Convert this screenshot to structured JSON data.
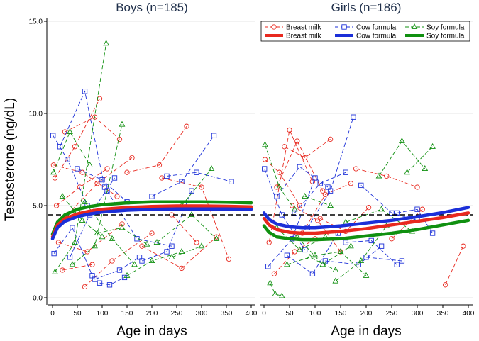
{
  "chart_data": {
    "type": "line",
    "ylabel": "Testosterone (ng/dL)",
    "xlabel": "Age in days",
    "ylim": [
      0,
      15
    ],
    "xlim": [
      0,
      400
    ],
    "yticks": [
      0,
      5,
      10,
      15
    ],
    "ytick_labels": [
      "0.0",
      "5.0",
      "10.0",
      "15.0"
    ],
    "xticks": [
      0,
      50,
      100,
      150,
      200,
      250,
      300,
      350,
      400
    ],
    "reference_line": 4.5,
    "colors": {
      "breast": "#e8291f",
      "cow": "#1b2fd8",
      "soy": "#109010",
      "grid": "#e6e6e6",
      "title": "#1f2f4a"
    },
    "legend": [
      {
        "label": "Breast milk",
        "group": "breast",
        "kind": "obs"
      },
      {
        "label": "Cow formula",
        "group": "cow",
        "kind": "obs"
      },
      {
        "label": "Soy formula",
        "group": "soy",
        "kind": "obs"
      },
      {
        "label": "Breast milk",
        "group": "breast",
        "kind": "fit"
      },
      {
        "label": "Cow formula",
        "group": "cow",
        "kind": "fit"
      },
      {
        "label": "Soy formula",
        "group": "soy",
        "kind": "fit"
      }
    ],
    "panels": [
      {
        "title": "Boys (n=185)",
        "fits": [
          {
            "group": "soy",
            "x": [
              0,
              10,
              25,
              50,
              75,
              100,
              150,
              200,
              250,
              300,
              350,
              400
            ],
            "y": [
              3.45,
              4.1,
              4.5,
              4.8,
              4.95,
              5.05,
              5.15,
              5.2,
              5.2,
              5.2,
              5.18,
              5.15
            ]
          },
          {
            "group": "breast",
            "x": [
              0,
              10,
              25,
              50,
              75,
              100,
              150,
              200,
              250,
              300,
              350,
              400
            ],
            "y": [
              3.3,
              3.95,
              4.3,
              4.55,
              4.7,
              4.8,
              4.9,
              4.95,
              4.98,
              4.98,
              4.96,
              4.93
            ]
          },
          {
            "group": "cow",
            "x": [
              0,
              10,
              25,
              50,
              75,
              100,
              150,
              200,
              250,
              300,
              350,
              400
            ],
            "y": [
              3.2,
              3.8,
              4.15,
              4.4,
              4.55,
              4.65,
              4.75,
              4.8,
              4.82,
              4.82,
              4.82,
              4.8
            ]
          }
        ],
        "subjects": [
          {
            "group": "breast",
            "x": [
              2,
              60,
              130
            ],
            "y": [
              7.2,
              6.8,
              5.5
            ]
          },
          {
            "group": "breast",
            "x": [
              5,
              45,
              95
            ],
            "y": [
              6.5,
              8.2,
              10.8
            ]
          },
          {
            "group": "breast",
            "x": [
              8,
              55,
              110
            ],
            "y": [
              5.0,
              6.0,
              7.0
            ]
          },
          {
            "group": "breast",
            "x": [
              12,
              70,
              140
            ],
            "y": [
              3.0,
              2.5,
              4.0
            ]
          },
          {
            "group": "breast",
            "x": [
              20,
              80
            ],
            "y": [
              1.5,
              1.8
            ]
          },
          {
            "group": "breast",
            "x": [
              30,
              90,
              160
            ],
            "y": [
              4.5,
              6.2,
              7.6
            ]
          },
          {
            "group": "breast",
            "x": [
              65,
              120,
              200
            ],
            "y": [
              0.6,
              2.0,
              3.5
            ]
          },
          {
            "group": "breast",
            "x": [
              150,
              215,
              270
            ],
            "y": [
              6.8,
              7.2,
              9.3
            ]
          },
          {
            "group": "breast",
            "x": [
              180,
              260,
              330
            ],
            "y": [
              2.8,
              1.6,
              3.3
            ]
          },
          {
            "group": "breast",
            "x": [
              220,
              300,
              355
            ],
            "y": [
              6.5,
              6.0,
              2.1
            ]
          },
          {
            "group": "breast",
            "x": [
              240,
              290
            ],
            "y": [
              4.5,
              3.0
            ]
          },
          {
            "group": "breast",
            "x": [
              25,
              85,
              135
            ],
            "y": [
              9.0,
              9.8,
              8.6
            ]
          },
          {
            "group": "cow",
            "x": [
              1,
              30,
              70
            ],
            "y": [
              8.8,
              7.5,
              5.0
            ]
          },
          {
            "group": "cow",
            "x": [
              3,
              40,
              80
            ],
            "y": [
              2.4,
              3.8,
              1.2
            ]
          },
          {
            "group": "cow",
            "x": [
              15,
              65,
              105
            ],
            "y": [
              8.2,
              11.2,
              6.0
            ]
          },
          {
            "group": "cow",
            "x": [
              35,
              75,
              125
            ],
            "y": [
              2.2,
              4.5,
              6.5
            ]
          },
          {
            "group": "cow",
            "x": [
              50,
              100,
              150
            ],
            "y": [
              7.0,
              6.4,
              5.2
            ]
          },
          {
            "group": "cow",
            "x": [
              85,
              135,
              175
            ],
            "y": [
              1.0,
              1.5,
              2.2
            ]
          },
          {
            "group": "cow",
            "x": [
              110,
              170,
              240
            ],
            "y": [
              5.8,
              3.2,
              2.8
            ]
          },
          {
            "group": "cow",
            "x": [
              180,
              230,
              280
            ],
            "y": [
              2.0,
              2.5,
              5.8
            ]
          },
          {
            "group": "cow",
            "x": [
              200,
              260,
              325
            ],
            "y": [
              5.5,
              6.3,
              8.8
            ]
          },
          {
            "group": "cow",
            "x": [
              230,
              290,
              360
            ],
            "y": [
              6.6,
              6.8,
              6.3
            ]
          },
          {
            "group": "cow",
            "x": [
              95,
              115,
              145
            ],
            "y": [
              0.8,
              0.7,
              1.1
            ]
          },
          {
            "group": "soy",
            "x": [
              2,
              35,
              75
            ],
            "y": [
              6.8,
              9.0,
              7.2
            ]
          },
          {
            "group": "soy",
            "x": [
              5,
              45,
              108
            ],
            "y": [
              1.4,
              3.0,
              13.8
            ]
          },
          {
            "group": "soy",
            "x": [
              20,
              60,
              100
            ],
            "y": [
              5.5,
              4.2,
              3.3
            ]
          },
          {
            "group": "soy",
            "x": [
              40,
              85,
              140
            ],
            "y": [
              1.8,
              2.8,
              9.4
            ]
          },
          {
            "group": "soy",
            "x": [
              65,
              120,
              165
            ],
            "y": [
              5.2,
              3.2,
              1.8
            ]
          },
          {
            "group": "soy",
            "x": [
              90,
              140,
              190
            ],
            "y": [
              3.5,
              3.8,
              2.9
            ]
          },
          {
            "group": "soy",
            "x": [
              150,
              200,
              260
            ],
            "y": [
              1.2,
              2.0,
              2.5
            ]
          },
          {
            "group": "soy",
            "x": [
              210,
              280,
              330
            ],
            "y": [
              3.0,
              4.5,
              3.2
            ]
          },
          {
            "group": "soy",
            "x": [
              240,
              300
            ],
            "y": [
              2.2,
              2.8
            ]
          },
          {
            "group": "soy",
            "x": [
              260,
              320
            ],
            "y": [
              5.0,
              7.0
            ]
          }
        ]
      },
      {
        "title": "Girls (n=186)",
        "fits": [
          {
            "group": "cow",
            "x": [
              0,
              10,
              25,
              50,
              75,
              100,
              150,
              200,
              250,
              300,
              350,
              400
            ],
            "y": [
              4.6,
              4.25,
              4.0,
              3.85,
              3.8,
              3.8,
              3.9,
              4.05,
              4.2,
              4.4,
              4.62,
              4.9
            ]
          },
          {
            "group": "breast",
            "x": [
              0,
              10,
              25,
              50,
              75,
              100,
              150,
              200,
              250,
              300,
              350,
              400
            ],
            "y": [
              4.3,
              3.95,
              3.7,
              3.55,
              3.5,
              3.5,
              3.6,
              3.75,
              3.95,
              4.15,
              4.35,
              4.6
            ]
          },
          {
            "group": "soy",
            "x": [
              0,
              10,
              25,
              50,
              75,
              100,
              150,
              200,
              250,
              300,
              350,
              400
            ],
            "y": [
              3.9,
              3.55,
              3.3,
              3.2,
              3.15,
              3.15,
              3.2,
              3.35,
              3.5,
              3.7,
              3.95,
              4.2
            ]
          }
        ],
        "subjects": [
          {
            "group": "breast",
            "x": [
              2,
              30,
              70
            ],
            "y": [
              7.5,
              6.8,
              5.0
            ]
          },
          {
            "group": "breast",
            "x": [
              10,
              50,
              95
            ],
            "y": [
              3.0,
              9.1,
              6.3
            ]
          },
          {
            "group": "breast",
            "x": [
              20,
              60,
              100
            ],
            "y": [
              1.3,
              2.5,
              3.2
            ]
          },
          {
            "group": "breast",
            "x": [
              40,
              80,
              130
            ],
            "y": [
              8.2,
              7.6,
              8.6
            ]
          },
          {
            "group": "breast",
            "x": [
              55,
              105,
              150
            ],
            "y": [
              5.0,
              4.2,
              2.5
            ]
          },
          {
            "group": "breast",
            "x": [
              75,
              120,
              170
            ],
            "y": [
              3.5,
              5.6,
              6.2
            ]
          },
          {
            "group": "breast",
            "x": [
              110,
              160,
              205
            ],
            "y": [
              4.3,
              3.6,
              4.9
            ]
          },
          {
            "group": "breast",
            "x": [
              180,
              240,
              300
            ],
            "y": [
              7.0,
              6.6,
              6.0
            ]
          },
          {
            "group": "breast",
            "x": [
              250,
              310
            ],
            "y": [
              3.2,
              4.8
            ]
          },
          {
            "group": "breast",
            "x": [
              355,
              390
            ],
            "y": [
              0.7,
              2.8
            ]
          },
          {
            "group": "breast",
            "x": [
              25,
              65,
              115
            ],
            "y": [
              6.0,
              8.5,
              5.8
            ]
          },
          {
            "group": "cow",
            "x": [
              1,
              35,
              80
            ],
            "y": [
              7.0,
              4.5,
              2.6
            ]
          },
          {
            "group": "cow",
            "x": [
              8,
              55,
              100
            ],
            "y": [
              1.7,
              3.2,
              6.5
            ]
          },
          {
            "group": "cow",
            "x": [
              25,
              70,
              125
            ],
            "y": [
              5.5,
              7.1,
              6.0
            ]
          },
          {
            "group": "cow",
            "x": [
              45,
              95,
              145
            ],
            "y": [
              2.3,
              1.3,
              3.5
            ]
          },
          {
            "group": "cow",
            "x": [
              60,
              110,
              160
            ],
            "y": [
              4.6,
              6.2,
              6.8
            ]
          },
          {
            "group": "cow",
            "x": [
              85,
              130,
              175
            ],
            "y": [
              3.8,
              5.8,
              9.8
            ]
          },
          {
            "group": "cow",
            "x": [
              120,
              185,
              230
            ],
            "y": [
              2.0,
              1.8,
              2.8
            ]
          },
          {
            "group": "cow",
            "x": [
              160,
              210,
              260
            ],
            "y": [
              3.0,
              3.1,
              1.8
            ]
          },
          {
            "group": "cow",
            "x": [
              190,
              250,
              300
            ],
            "y": [
              6.1,
              4.6,
              4.2
            ]
          },
          {
            "group": "cow",
            "x": [
              260,
              300,
              330
            ],
            "y": [
              4.6,
              4.8,
              3.5
            ]
          },
          {
            "group": "cow",
            "x": [
              200,
              270
            ],
            "y": [
              2.2,
              2.0
            ]
          },
          {
            "group": "soy",
            "x": [
              2,
              30,
              60
            ],
            "y": [
              8.3,
              6.0,
              4.8
            ]
          },
          {
            "group": "soy",
            "x": [
              12,
              22,
              35
            ],
            "y": [
              0.8,
              0.2,
              0.1
            ]
          },
          {
            "group": "soy",
            "x": [
              25,
              70,
              120
            ],
            "y": [
              3.8,
              2.6,
              3.3
            ]
          },
          {
            "group": "soy",
            "x": [
              45,
              90,
              140
            ],
            "y": [
              1.8,
              2.2,
              1.5
            ]
          },
          {
            "group": "soy",
            "x": [
              65,
              115,
              170
            ],
            "y": [
              3.3,
              1.8,
              2.8
            ]
          },
          {
            "group": "soy",
            "x": [
              100,
              150,
              200
            ],
            "y": [
              2.3,
              2.5,
              1.2
            ]
          },
          {
            "group": "soy",
            "x": [
              140,
              190,
              240
            ],
            "y": [
              0.9,
              2.0,
              3.9
            ]
          },
          {
            "group": "soy",
            "x": [
              225,
              270,
              315
            ],
            "y": [
              6.6,
              8.5,
              7.0
            ]
          },
          {
            "group": "soy",
            "x": [
              280,
              330
            ],
            "y": [
              6.8,
              8.2
            ]
          },
          {
            "group": "soy",
            "x": [
              160,
              230,
              290
            ],
            "y": [
              4.1,
              4.8,
              3.6
            ]
          },
          {
            "group": "soy",
            "x": [
              80,
              130
            ],
            "y": [
              5.5,
              5.0
            ]
          }
        ]
      }
    ]
  }
}
